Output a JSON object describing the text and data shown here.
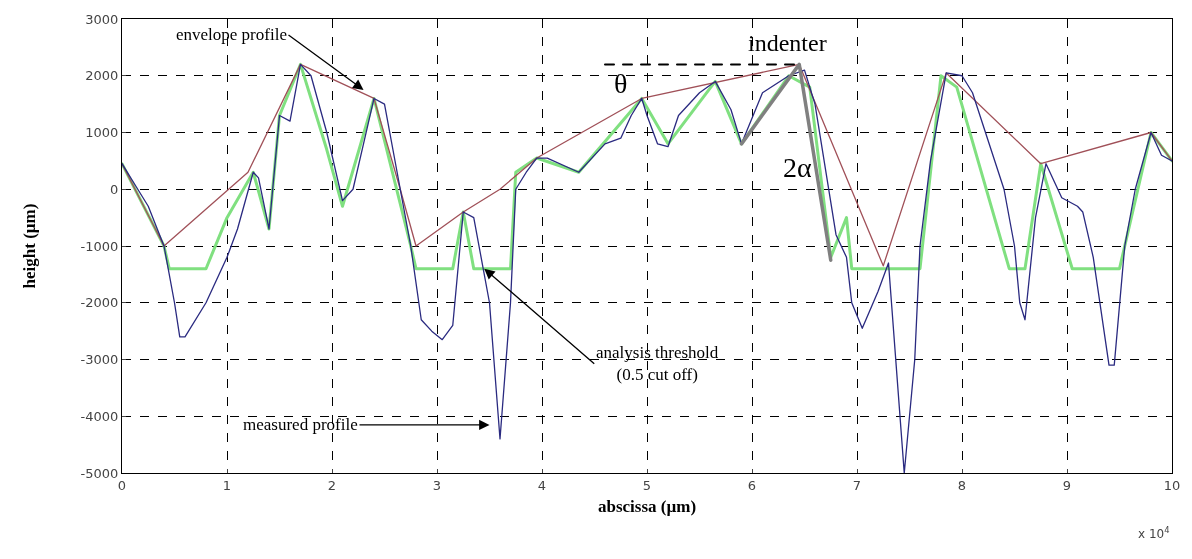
{
  "chart_data": {
    "type": "line",
    "xlabel": "abscissa (µm)",
    "ylabel": "height (µm)",
    "xlim": [
      0,
      10
    ],
    "xticks": [
      0,
      1,
      2,
      3,
      4,
      5,
      6,
      7,
      8,
      9,
      10
    ],
    "ylim": [
      -5000,
      3000
    ],
    "yticks": [
      -5000,
      -4000,
      -3000,
      -2000,
      -1000,
      0,
      1000,
      2000,
      3000
    ],
    "grid": true,
    "marker": "none",
    "line_style": "solid",
    "series": [
      {
        "color": "#80e080",
        "x": [
          0,
          0.4,
          0.45,
          0.8,
          1.0,
          1.25,
          1.4,
          1.5,
          1.7,
          1.95,
          2.1,
          2.4,
          2.75,
          2.8,
          3.15,
          3.25,
          3.35,
          3.7,
          3.75,
          3.95,
          4.35,
          4.95,
          5.2,
          5.65,
          5.9,
          6.35,
          6.55,
          6.75,
          6.9,
          6.95,
          7.6,
          7.8,
          7.95,
          8.45,
          8.6,
          8.75,
          9.05,
          9.5,
          9.8,
          10
        ],
        "values": [
          450,
          -1000,
          -1400,
          -1400,
          -500,
          300,
          -700,
          1300,
          2200,
          700,
          -300,
          1600,
          -1000,
          -1400,
          -1400,
          -400,
          -1400,
          -1400,
          300,
          550,
          300,
          1600,
          800,
          1900,
          800,
          2000,
          1800,
          -1200,
          -500,
          -1400,
          -1400,
          2000,
          1800,
          -1400,
          -1400,
          450,
          -1400,
          -1400,
          1000,
          500
        ]
      },
      {
        "color": "#a05058",
        "x": [
          0,
          0.4,
          1.2,
          1.7,
          2.4,
          2.65,
          2.8,
          3.25,
          3.6,
          3.95,
          4.95,
          6.45,
          7.25,
          7.85,
          8.75,
          9.8,
          10
        ],
        "values": [
          450,
          -1000,
          300,
          2200,
          1600,
          0,
          -1000,
          -400,
          0,
          550,
          1600,
          2200,
          -1350,
          2050,
          450,
          1000,
          500
        ]
      },
      {
        "color": "#2a2a80",
        "x": [
          0,
          0.15,
          0.25,
          0.4,
          0.5,
          0.55,
          0.6,
          0.8,
          1.0,
          1.1,
          1.25,
          1.3,
          1.4,
          1.5,
          1.6,
          1.7,
          1.8,
          1.95,
          2.1,
          2.2,
          2.3,
          2.4,
          2.5,
          2.65,
          2.75,
          2.85,
          2.95,
          3.05,
          3.15,
          3.25,
          3.35,
          3.5,
          3.6,
          3.7,
          3.75,
          3.85,
          3.95,
          4.05,
          4.35,
          4.6,
          4.75,
          4.85,
          4.95,
          5.0,
          5.1,
          5.2,
          5.3,
          5.5,
          5.65,
          5.8,
          5.9,
          6.1,
          6.35,
          6.5,
          6.6,
          6.8,
          6.9,
          6.95,
          7.05,
          7.2,
          7.3,
          7.45,
          7.55,
          7.6,
          7.7,
          7.85,
          8.0,
          8.1,
          8.4,
          8.5,
          8.55,
          8.6,
          8.7,
          8.8,
          8.95,
          9.1,
          9.15,
          9.25,
          9.4,
          9.45,
          9.55,
          9.65,
          9.8,
          9.9,
          10
        ],
        "values": [
          450,
          0,
          -300,
          -1000,
          -2000,
          -2600,
          -2600,
          -2000,
          -1200,
          -700,
          300,
          200,
          -700,
          1300,
          1200,
          2200,
          2000,
          1000,
          -200,
          0,
          800,
          1600,
          1500,
          0,
          -1000,
          -2300,
          -2500,
          -2650,
          -2400,
          -400,
          -500,
          -2000,
          -4400,
          -2000,
          0,
          300,
          550,
          550,
          300,
          800,
          900,
          1300,
          1600,
          1300,
          800,
          750,
          1300,
          1700,
          1900,
          1400,
          800,
          1700,
          2000,
          2100,
          1500,
          -800,
          -1200,
          -2000,
          -2450,
          -1800,
          -1300,
          -5000,
          -3000,
          -1000,
          500,
          2050,
          2000,
          1700,
          0,
          -1000,
          -2000,
          -2300,
          -500,
          450,
          -150,
          -300,
          -400,
          -1200,
          -3100,
          -3100,
          -1000,
          0,
          1000,
          600,
          500
        ]
      },
      {
        "color": "#808080",
        "x": [
          5.9,
          6.45,
          6.75
        ],
        "values": [
          800,
          2200,
          -1250
        ]
      },
      {
        "color": "#000000",
        "x": [
          4.6,
          6.45
        ],
        "values": [
          2200,
          2200
        ],
        "line_style": "dashed"
      }
    ],
    "annotations": [
      {
        "text": "envelope profile",
        "x": 2.3,
        "y": 1750
      },
      "measured profile",
      {
        "text": "analysis threshold\n(0.5 cut off)",
        "x": 3.45,
        "y": -1400
      },
      {
        "text": "indenter",
        "x": 6.45,
        "y": 2200
      },
      {
        "text": "θ",
        "x": 4.75,
        "y": 2200
      },
      "2α",
      "x 10$^{4}$"
    ]
  }
}
